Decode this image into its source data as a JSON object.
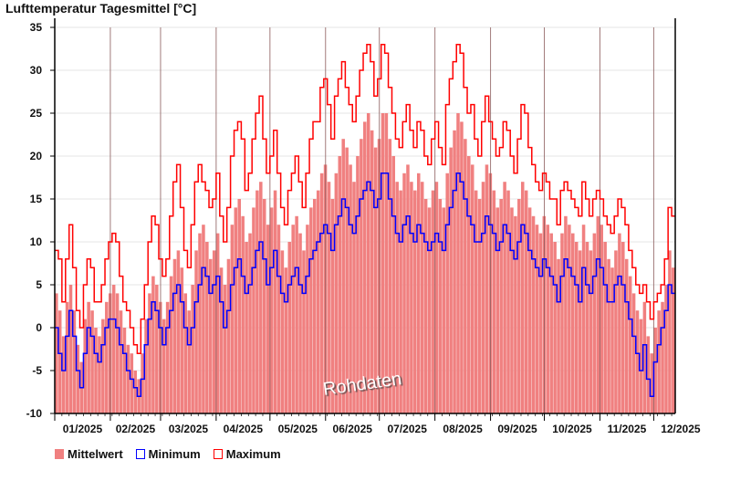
{
  "chart_data": {
    "type": "bar+line",
    "title": "Lufttemperatur Tagesmittel [°C]",
    "xlabel": "",
    "ylabel": "",
    "ylim": [
      -10,
      35
    ],
    "yticks": [
      35,
      30,
      25,
      20,
      15,
      10,
      5,
      0,
      -5,
      -10
    ],
    "x_unit": "days since 01/2025, 2-day bins",
    "xlim_days": [
      0,
      346
    ],
    "month_starts_days": [
      0,
      31,
      59,
      90,
      120,
      151,
      181,
      212,
      243,
      273,
      304,
      334
    ],
    "month_labels": [
      "01/2025",
      "02/2025",
      "03/2025",
      "04/2025",
      "05/2025",
      "06/2025",
      "07/2025",
      "08/2025",
      "09/2025",
      "10/2025",
      "11/2025",
      "12/2025"
    ],
    "bin_days": 2,
    "grid": true,
    "legend_position": "bottom-left",
    "annotation": "Rohdaten",
    "series": [
      {
        "name": "Mittelwert",
        "style": "bar",
        "color": "#f08080",
        "values": [
          4,
          2,
          -1,
          3,
          5,
          2,
          -2,
          -4,
          1,
          3,
          2,
          0,
          -1,
          1,
          3,
          4,
          5,
          4,
          2,
          0,
          -2,
          -3,
          -5,
          -6,
          -3,
          1,
          4,
          6,
          5,
          3,
          1,
          3,
          6,
          8,
          9,
          7,
          4,
          2,
          5,
          9,
          11,
          12,
          10,
          8,
          9,
          11,
          7,
          5,
          8,
          12,
          14,
          15,
          13,
          10,
          11,
          14,
          16,
          17,
          15,
          12,
          14,
          16,
          12,
          9,
          7,
          10,
          12,
          13,
          11,
          9,
          12,
          14,
          15,
          16,
          18,
          19,
          17,
          15,
          18,
          20,
          22,
          21,
          19,
          17,
          20,
          22,
          24,
          25,
          23,
          21,
          22,
          25,
          25,
          22,
          20,
          17,
          16,
          18,
          19,
          17,
          16,
          18,
          17,
          15,
          14,
          16,
          17,
          15,
          14,
          18,
          21,
          23,
          25,
          24,
          22,
          20,
          19,
          16,
          15,
          17,
          19,
          18,
          16,
          14,
          15,
          17,
          16,
          14,
          13,
          15,
          17,
          16,
          14,
          13,
          12,
          11,
          13,
          12,
          11,
          10,
          8,
          11,
          13,
          12,
          11,
          10,
          9,
          12,
          10,
          9,
          11,
          13,
          12,
          10,
          8,
          7,
          9,
          11,
          10,
          8,
          6,
          4,
          2,
          1,
          3,
          -1,
          -3,
          0,
          2,
          3,
          5,
          9,
          7
        ]
      },
      {
        "name": "Minimum",
        "style": "step",
        "color": "#0000ff",
        "values": [
          0,
          -3,
          -5,
          -1,
          2,
          -1,
          -5,
          -7,
          -3,
          0,
          -1,
          -3,
          -4,
          -2,
          0,
          1,
          1,
          0,
          -2,
          -3,
          -5,
          -6,
          -7,
          -8,
          -6,
          -2,
          1,
          3,
          2,
          0,
          -2,
          0,
          2,
          4,
          5,
          3,
          0,
          -2,
          0,
          3,
          5,
          7,
          6,
          4,
          5,
          6,
          3,
          0,
          2,
          5,
          7,
          8,
          6,
          4,
          5,
          7,
          9,
          10,
          8,
          5,
          7,
          9,
          6,
          4,
          3,
          5,
          6,
          7,
          5,
          4,
          6,
          8,
          9,
          10,
          11,
          12,
          11,
          9,
          12,
          13,
          15,
          14,
          12,
          11,
          13,
          15,
          16,
          17,
          16,
          14,
          15,
          18,
          18,
          15,
          13,
          11,
          10,
          12,
          13,
          11,
          10,
          12,
          11,
          10,
          9,
          10,
          11,
          10,
          9,
          12,
          14,
          16,
          18,
          17,
          15,
          13,
          12,
          10,
          10,
          11,
          13,
          12,
          11,
          9,
          10,
          12,
          11,
          9,
          8,
          10,
          12,
          11,
          9,
          8,
          7,
          6,
          8,
          7,
          6,
          5,
          3,
          6,
          8,
          7,
          6,
          5,
          3,
          7,
          5,
          4,
          6,
          8,
          7,
          5,
          3,
          3,
          5,
          6,
          5,
          3,
          1,
          -1,
          -3,
          -5,
          -2,
          -6,
          -8,
          -4,
          -2,
          0,
          2,
          5,
          4
        ]
      },
      {
        "name": "Maximum",
        "style": "step",
        "color": "#ff0000",
        "values": [
          9,
          8,
          3,
          8,
          12,
          7,
          2,
          0,
          5,
          8,
          7,
          3,
          3,
          5,
          8,
          10,
          11,
          10,
          6,
          3,
          2,
          0,
          -2,
          -3,
          1,
          5,
          10,
          13,
          12,
          8,
          6,
          8,
          13,
          17,
          19,
          14,
          9,
          7,
          12,
          17,
          19,
          17,
          16,
          14,
          15,
          18,
          13,
          10,
          14,
          20,
          23,
          24,
          22,
          16,
          18,
          22,
          25,
          27,
          22,
          18,
          20,
          23,
          18,
          14,
          12,
          16,
          18,
          20,
          17,
          14,
          18,
          22,
          24,
          24,
          28,
          29,
          26,
          22,
          27,
          29,
          31,
          28,
          26,
          24,
          27,
          30,
          32,
          33,
          31,
          27,
          29,
          33,
          32,
          28,
          25,
          22,
          21,
          24,
          26,
          23,
          21,
          24,
          23,
          20,
          19,
          22,
          24,
          21,
          19,
          26,
          29,
          31,
          33,
          32,
          28,
          25,
          26,
          22,
          20,
          24,
          27,
          24,
          22,
          20,
          21,
          24,
          23,
          20,
          18,
          22,
          26,
          25,
          21,
          19,
          17,
          16,
          18,
          17,
          15,
          15,
          12,
          16,
          17,
          16,
          15,
          14,
          13,
          17,
          15,
          13,
          15,
          16,
          15,
          13,
          12,
          11,
          13,
          15,
          14,
          12,
          9,
          7,
          5,
          4,
          5,
          3,
          1,
          3,
          4,
          5,
          8,
          14,
          13
        ]
      }
    ]
  }
}
